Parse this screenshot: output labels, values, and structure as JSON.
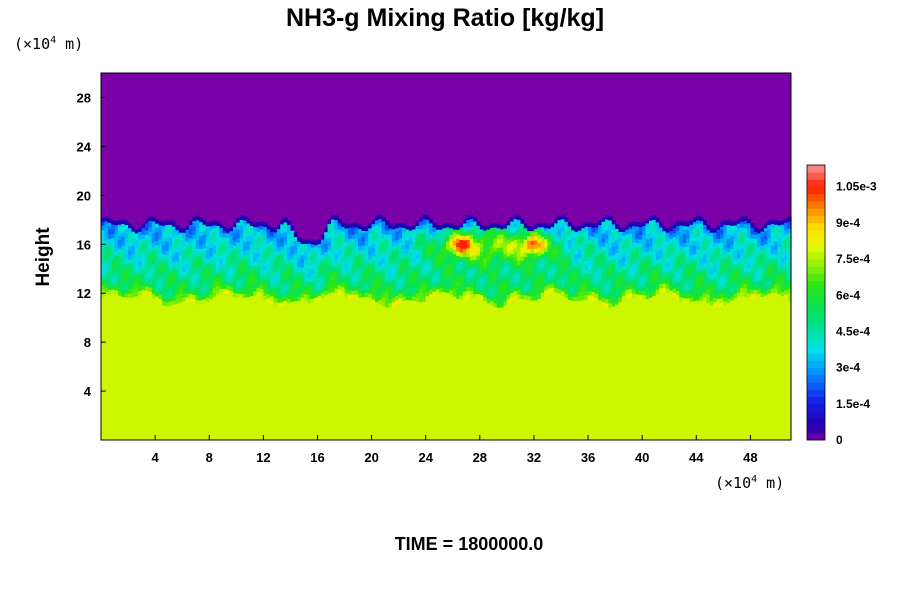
{
  "chart_data": {
    "type": "heatmap",
    "title": "NH3-g Mixing Ratio [kg/kg]",
    "ylabel": "Height",
    "y_unit": {
      "prefix": "(×10",
      "exp": "4",
      "suffix": " m)"
    },
    "x_unit": {
      "prefix": "(×10",
      "exp": "4",
      "suffix": " m)"
    },
    "xlim": [
      0,
      51
    ],
    "ylim": [
      0,
      30
    ],
    "x_ticks": [
      4,
      8,
      12,
      16,
      20,
      24,
      28,
      32,
      36,
      40,
      44,
      48
    ],
    "y_ticks": [
      4,
      8,
      12,
      16,
      20,
      24,
      28
    ],
    "colorbar": {
      "min": 0,
      "max": 0.00114,
      "tick_values": [
        0,
        0.00015,
        0.0003,
        0.00045,
        0.0006,
        0.00075,
        0.0009,
        0.00105
      ],
      "tick_labels": [
        "0",
        "1.5e-4",
        "3e-4",
        "4.5e-4",
        "6e-4",
        "7.5e-4",
        "9e-4",
        "1.05e-3"
      ]
    },
    "field_description": {
      "lower_layer_value": 0.00078,
      "lower_layer_top_height": 11.5,
      "mixed_layer_value_range": [
        0.0003,
        0.00055
      ],
      "cloud_top_height_approx": 17.5,
      "upper_layer_value": 0.0,
      "peak_value": 0.00105,
      "peak_locations_x": [
        26.5,
        32.0
      ],
      "peak_height": 16
    },
    "time_label": "TIME = 1800000.0"
  }
}
